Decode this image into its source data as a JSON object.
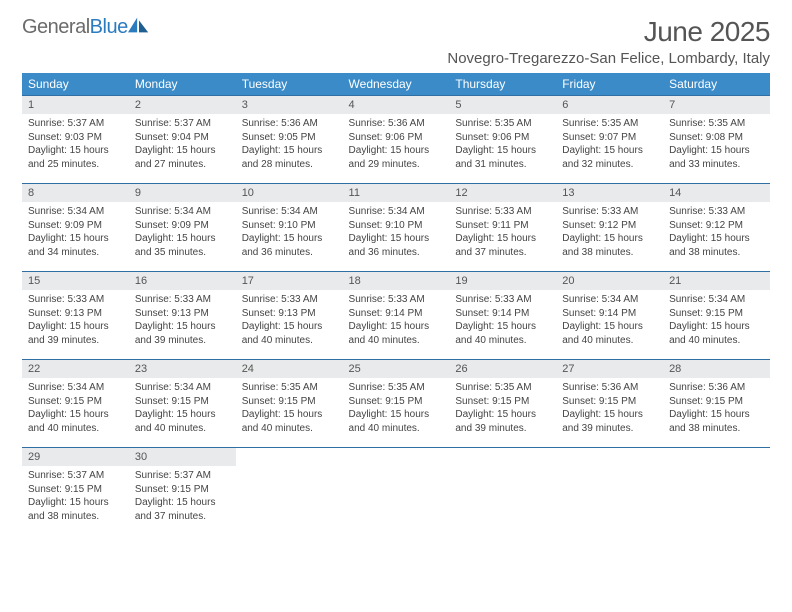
{
  "brand": {
    "word1": "General",
    "word2": "Blue"
  },
  "title": "June 2025",
  "location": "Novegro-Tregarezzo-San Felice, Lombardy, Italy",
  "colors": {
    "header_bg": "#3b8bc9",
    "header_text": "#ffffff",
    "row_border": "#2f6fa3",
    "daynum_bg": "#e9eaeb",
    "body_text": "#444444",
    "brand_gray": "#6b6b6b",
    "brand_blue": "#2b7bbf"
  },
  "weekdays": [
    "Sunday",
    "Monday",
    "Tuesday",
    "Wednesday",
    "Thursday",
    "Friday",
    "Saturday"
  ],
  "days": [
    {
      "n": "1",
      "sr": "5:37 AM",
      "ss": "9:03 PM",
      "dl": "15 hours and 25 minutes."
    },
    {
      "n": "2",
      "sr": "5:37 AM",
      "ss": "9:04 PM",
      "dl": "15 hours and 27 minutes."
    },
    {
      "n": "3",
      "sr": "5:36 AM",
      "ss": "9:05 PM",
      "dl": "15 hours and 28 minutes."
    },
    {
      "n": "4",
      "sr": "5:36 AM",
      "ss": "9:06 PM",
      "dl": "15 hours and 29 minutes."
    },
    {
      "n": "5",
      "sr": "5:35 AM",
      "ss": "9:06 PM",
      "dl": "15 hours and 31 minutes."
    },
    {
      "n": "6",
      "sr": "5:35 AM",
      "ss": "9:07 PM",
      "dl": "15 hours and 32 minutes."
    },
    {
      "n": "7",
      "sr": "5:35 AM",
      "ss": "9:08 PM",
      "dl": "15 hours and 33 minutes."
    },
    {
      "n": "8",
      "sr": "5:34 AM",
      "ss": "9:09 PM",
      "dl": "15 hours and 34 minutes."
    },
    {
      "n": "9",
      "sr": "5:34 AM",
      "ss": "9:09 PM",
      "dl": "15 hours and 35 minutes."
    },
    {
      "n": "10",
      "sr": "5:34 AM",
      "ss": "9:10 PM",
      "dl": "15 hours and 36 minutes."
    },
    {
      "n": "11",
      "sr": "5:34 AM",
      "ss": "9:10 PM",
      "dl": "15 hours and 36 minutes."
    },
    {
      "n": "12",
      "sr": "5:33 AM",
      "ss": "9:11 PM",
      "dl": "15 hours and 37 minutes."
    },
    {
      "n": "13",
      "sr": "5:33 AM",
      "ss": "9:12 PM",
      "dl": "15 hours and 38 minutes."
    },
    {
      "n": "14",
      "sr": "5:33 AM",
      "ss": "9:12 PM",
      "dl": "15 hours and 38 minutes."
    },
    {
      "n": "15",
      "sr": "5:33 AM",
      "ss": "9:13 PM",
      "dl": "15 hours and 39 minutes."
    },
    {
      "n": "16",
      "sr": "5:33 AM",
      "ss": "9:13 PM",
      "dl": "15 hours and 39 minutes."
    },
    {
      "n": "17",
      "sr": "5:33 AM",
      "ss": "9:13 PM",
      "dl": "15 hours and 40 minutes."
    },
    {
      "n": "18",
      "sr": "5:33 AM",
      "ss": "9:14 PM",
      "dl": "15 hours and 40 minutes."
    },
    {
      "n": "19",
      "sr": "5:33 AM",
      "ss": "9:14 PM",
      "dl": "15 hours and 40 minutes."
    },
    {
      "n": "20",
      "sr": "5:34 AM",
      "ss": "9:14 PM",
      "dl": "15 hours and 40 minutes."
    },
    {
      "n": "21",
      "sr": "5:34 AM",
      "ss": "9:15 PM",
      "dl": "15 hours and 40 minutes."
    },
    {
      "n": "22",
      "sr": "5:34 AM",
      "ss": "9:15 PM",
      "dl": "15 hours and 40 minutes."
    },
    {
      "n": "23",
      "sr": "5:34 AM",
      "ss": "9:15 PM",
      "dl": "15 hours and 40 minutes."
    },
    {
      "n": "24",
      "sr": "5:35 AM",
      "ss": "9:15 PM",
      "dl": "15 hours and 40 minutes."
    },
    {
      "n": "25",
      "sr": "5:35 AM",
      "ss": "9:15 PM",
      "dl": "15 hours and 40 minutes."
    },
    {
      "n": "26",
      "sr": "5:35 AM",
      "ss": "9:15 PM",
      "dl": "15 hours and 39 minutes."
    },
    {
      "n": "27",
      "sr": "5:36 AM",
      "ss": "9:15 PM",
      "dl": "15 hours and 39 minutes."
    },
    {
      "n": "28",
      "sr": "5:36 AM",
      "ss": "9:15 PM",
      "dl": "15 hours and 38 minutes."
    },
    {
      "n": "29",
      "sr": "5:37 AM",
      "ss": "9:15 PM",
      "dl": "15 hours and 38 minutes."
    },
    {
      "n": "30",
      "sr": "5:37 AM",
      "ss": "9:15 PM",
      "dl": "15 hours and 37 minutes."
    }
  ],
  "labels": {
    "sunrise": "Sunrise:",
    "sunset": "Sunset:",
    "daylight": "Daylight:"
  }
}
